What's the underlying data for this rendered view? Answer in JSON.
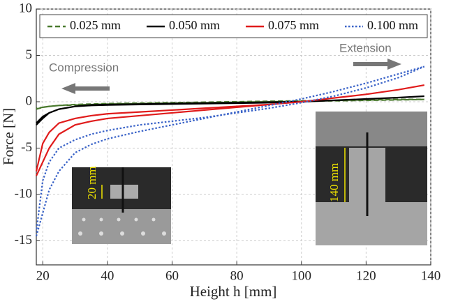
{
  "chart_data": {
    "type": "line",
    "xlabel": "Height h [mm]",
    "ylabel": "Force [N]",
    "xlim": [
      18,
      140
    ],
    "ylim": [
      -17.6,
      10
    ],
    "xticks": [
      20,
      40,
      60,
      80,
      100,
      120,
      140
    ],
    "yticks": [
      -15,
      -10,
      -5,
      0,
      5,
      10
    ],
    "grid": true,
    "legend": "top",
    "x": [
      18,
      20,
      22,
      25,
      30,
      35,
      40,
      50,
      60,
      70,
      80,
      90,
      100,
      110,
      120,
      130,
      138,
      130,
      120,
      110,
      100,
      90,
      80,
      70,
      60,
      50,
      40,
      35,
      30,
      25,
      22,
      20,
      18
    ],
    "series": [
      {
        "name": "0.025 mm",
        "color": "#4a7a2e",
        "style": "dashed",
        "values": [
          -0.8,
          -0.6,
          -0.5,
          -0.4,
          -0.35,
          -0.3,
          -0.25,
          -0.2,
          -0.15,
          -0.1,
          -0.05,
          0,
          0.05,
          0.1,
          0.15,
          0.2,
          0.25,
          0.25,
          0.2,
          0.15,
          0.1,
          0.05,
          0,
          -0.05,
          -0.1,
          -0.15,
          -0.2,
          -0.25,
          -0.3,
          -0.4,
          -0.5,
          -0.6,
          -0.7
        ]
      },
      {
        "name": "0.050 mm",
        "color": "#000000",
        "style": "solid",
        "values": [
          -2.5,
          -1.8,
          -1.2,
          -0.8,
          -0.5,
          -0.4,
          -0.35,
          -0.3,
          -0.25,
          -0.2,
          -0.15,
          -0.1,
          0,
          0.15,
          0.3,
          0.45,
          0.6,
          0.45,
          0.3,
          0.15,
          0,
          -0.05,
          -0.1,
          -0.15,
          -0.2,
          -0.25,
          -0.3,
          -0.35,
          -0.5,
          -0.8,
          -1.2,
          -1.6,
          -2.3
        ]
      },
      {
        "name": "0.075 mm",
        "color": "#e01b1b",
        "style": "solid",
        "values": [
          -8,
          -6.5,
          -5,
          -3.5,
          -2.5,
          -2.1,
          -1.8,
          -1.5,
          -1.2,
          -0.9,
          -0.6,
          -0.3,
          0,
          0.4,
          0.8,
          1.3,
          1.8,
          1.3,
          0.8,
          0.4,
          0,
          -0.3,
          -0.5,
          -0.7,
          -0.9,
          -1.1,
          -1.3,
          -1.5,
          -1.8,
          -2.3,
          -3.3,
          -4.5,
          -7.5
        ]
      },
      {
        "name": "0.100 mm",
        "color": "#3a63c8",
        "style": "dotted",
        "values": [
          -14.5,
          -12,
          -9.5,
          -7.5,
          -5.5,
          -4.6,
          -4,
          -3.2,
          -2.5,
          -1.8,
          -1.1,
          -0.4,
          0.3,
          1.1,
          2,
          3,
          3.8,
          2.6,
          1.5,
          0.6,
          -0.1,
          -0.7,
          -1.2,
          -1.7,
          -2.1,
          -2.5,
          -3.1,
          -3.5,
          -4.1,
          -5,
          -6.5,
          -8.5,
          -14
        ]
      }
    ],
    "annotations": [
      "Compression",
      "Extension"
    ],
    "inset_labels": [
      "20 mm",
      "140 mm"
    ]
  }
}
